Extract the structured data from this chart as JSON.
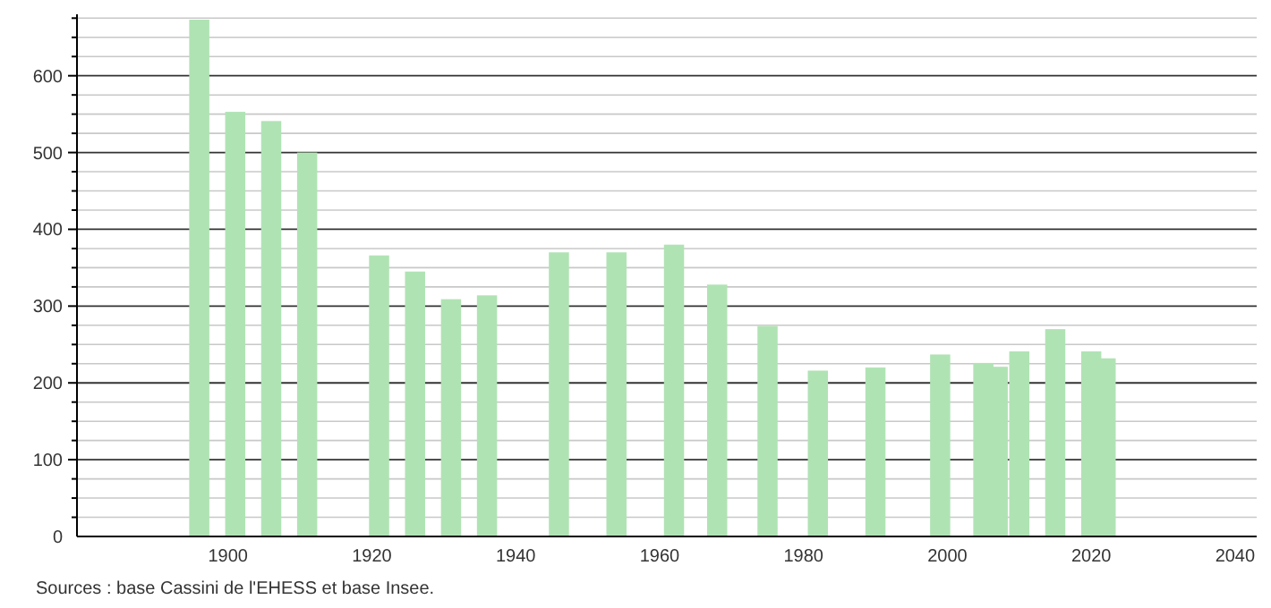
{
  "chart_data": {
    "type": "bar",
    "x": [
      1896,
      1901,
      1906,
      1911,
      1921,
      1926,
      1931,
      1936,
      1946,
      1954,
      1962,
      1968,
      1975,
      1982,
      1990,
      1999,
      2005,
      2007,
      2010,
      2015,
      2020,
      2022
    ],
    "values": [
      673,
      553,
      541,
      500,
      366,
      345,
      309,
      314,
      370,
      370,
      380,
      328,
      274,
      216,
      220,
      237,
      226,
      221,
      241,
      270,
      241,
      232
    ],
    "color": "#b0e3b4",
    "xlim": [
      1879,
      2043
    ],
    "xticks": [
      1900,
      1920,
      1940,
      1960,
      1980,
      2000,
      2020,
      2040
    ],
    "ylim": [
      0,
      680
    ],
    "yticks": [
      0,
      {
        "value": 25,
        "label": null
      },
      {
        "value": 50,
        "label": null
      },
      {
        "value": 75,
        "label": null
      },
      100,
      {
        "value": 125,
        "label": null
      },
      {
        "value": 150,
        "label": null
      },
      {
        "value": 175,
        "label": null
      },
      200,
      {
        "value": 225,
        "label": null
      },
      {
        "value": 250,
        "label": null
      },
      {
        "value": 275,
        "label": null
      },
      300,
      {
        "value": 325,
        "label": null
      },
      {
        "value": 350,
        "label": null
      },
      {
        "value": 375,
        "label": null
      },
      400,
      {
        "value": 425,
        "label": null
      },
      {
        "value": 450,
        "label": null
      },
      {
        "value": 475,
        "label": null
      },
      500,
      {
        "value": 525,
        "label": null
      },
      {
        "value": 550,
        "label": null
      },
      {
        "value": 575,
        "label": null
      },
      600,
      {
        "value": 625,
        "label": null
      },
      {
        "value": 650,
        "label": null
      },
      {
        "value": 675,
        "label": null
      }
    ],
    "grid": true,
    "annotations": [
      "Sources : base Cassini de l'EHESS et base Insee."
    ]
  }
}
